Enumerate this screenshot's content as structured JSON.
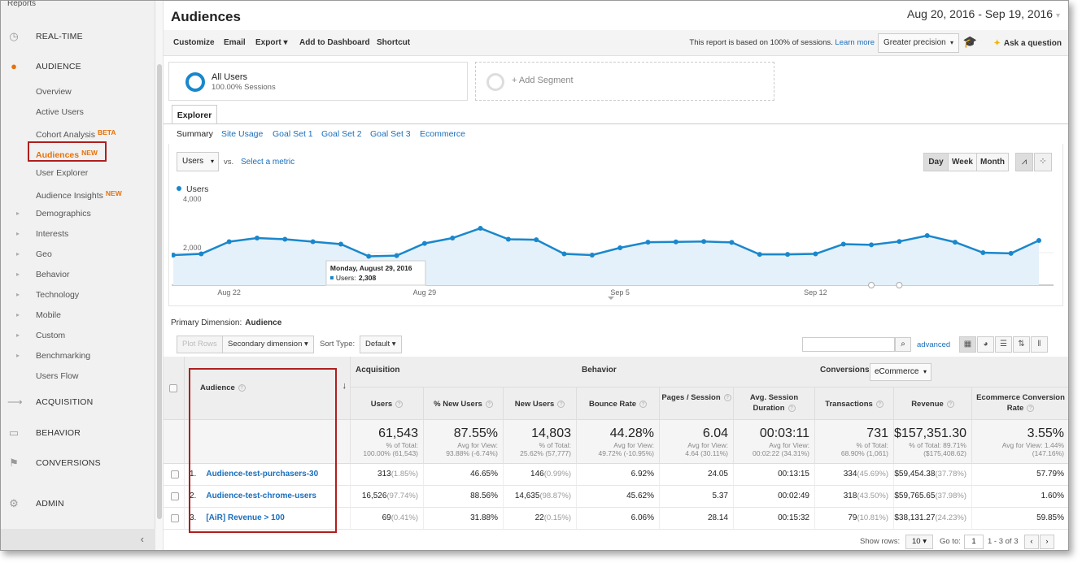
{
  "sidebar": {
    "reports_label": "Reports",
    "realtime": "REAL-TIME",
    "audience": "AUDIENCE",
    "items": [
      {
        "label": "Overview"
      },
      {
        "label": "Active Users"
      },
      {
        "label": "Cohort Analysis",
        "badge": "BETA"
      },
      {
        "label": "Audiences",
        "badge": "NEW"
      },
      {
        "label": "User Explorer"
      },
      {
        "label": "Audience Insights",
        "badge": "NEW"
      },
      {
        "label": "Demographics"
      },
      {
        "label": "Interests"
      },
      {
        "label": "Geo"
      },
      {
        "label": "Behavior"
      },
      {
        "label": "Technology"
      },
      {
        "label": "Mobile"
      },
      {
        "label": "Custom"
      },
      {
        "label": "Benchmarking"
      },
      {
        "label": "Users Flow"
      }
    ],
    "acquisition": "ACQUISITION",
    "behavior": "BEHAVIOR",
    "conversions": "CONVERSIONS",
    "admin": "ADMIN",
    "collapse_icon": "chevron-left-icon"
  },
  "header": {
    "title": "Audiences",
    "date_range": "Aug 20, 2016 - Sep 19, 2016"
  },
  "toolbar": {
    "customize": "Customize",
    "email": "Email",
    "export": "Export",
    "add_dashboard": "Add to Dashboard",
    "shortcut": "Shortcut",
    "note": "This report is based on 100% of sessions.",
    "learn_more": "Learn more",
    "precision": "Greater precision",
    "ask": "Ask a question"
  },
  "segments": {
    "all_users": "All Users",
    "all_users_sub": "100.00% Sessions",
    "add": "+ Add Segment"
  },
  "tabs": {
    "explorer": "Explorer",
    "subtabs": [
      "Summary",
      "Site Usage",
      "Goal Set 1",
      "Goal Set 2",
      "Goal Set 3",
      "Ecommerce"
    ]
  },
  "chart_controls": {
    "metric": "Users",
    "vs": "vs.",
    "select_metric": "Select a metric",
    "periods": [
      "Day",
      "Week",
      "Month"
    ]
  },
  "chart_data": {
    "type": "line",
    "series": [
      {
        "name": "Users",
        "values": [
          1900,
          1950,
          2450,
          2600,
          2550,
          2450,
          2350,
          1850,
          1880,
          2380,
          2600,
          3000,
          2550,
          2530,
          1950,
          1900,
          2200,
          2430,
          2440,
          2460,
          2420,
          1930,
          1930,
          1950,
          2350,
          2320,
          2460,
          2700,
          2430,
          2000,
          1970,
          2500
        ]
      }
    ],
    "x_tick_labels": [
      "Aug 22",
      "Aug 29",
      "Sep 5",
      "Sep 12"
    ],
    "y_tick_labels": [
      "4,000",
      "2,000"
    ],
    "ylim": [
      0,
      4000
    ],
    "tooltip": {
      "title": "Monday, August 29, 2016",
      "label": "Users:",
      "value": "2,308"
    },
    "color": "#1a87cc",
    "fill": "#e4f1fa"
  },
  "table_controls": {
    "primary_dimension_label": "Primary Dimension:",
    "primary_dimension": "Audience",
    "plot_rows": "Plot Rows",
    "secondary_dimension": "Secondary dimension",
    "sort_type_label": "Sort Type:",
    "sort_type": "Default",
    "advanced": "advanced"
  },
  "table": {
    "audience_header": "Audience",
    "groups": {
      "acquisition": "Acquisition",
      "behavior": "Behavior",
      "conversions": "Conversions",
      "conversion_type": "eCommerce"
    },
    "columns": [
      "Users",
      "% New Users",
      "New Users",
      "Bounce Rate",
      "Pages / Session",
      "Avg. Session Duration",
      "Transactions",
      "Revenue",
      "Ecommerce Conversion Rate"
    ],
    "totals": [
      {
        "big": "61,543",
        "l1": "% of Total:",
        "l2": "100.00% (61,543)"
      },
      {
        "big": "87.55%",
        "l1": "Avg for View:",
        "l2": "93.88% (-6.74%)"
      },
      {
        "big": "14,803",
        "l1": "% of Total:",
        "l2": "25.62% (57,777)"
      },
      {
        "big": "44.28%",
        "l1": "Avg for View:",
        "l2": "49.72% (-10.95%)"
      },
      {
        "big": "6.04",
        "l1": "Avg for View:",
        "l2": "4.64 (30.11%)"
      },
      {
        "big": "00:03:11",
        "l1": "Avg for View:",
        "l2": "00:02:22 (34.31%)"
      },
      {
        "big": "731",
        "l1": "% of Total:",
        "l2": "68.90% (1,061)"
      },
      {
        "big": "$157,351.30",
        "l1": "% of Total: 89.71%",
        "l2": "($175,408.62)"
      },
      {
        "big": "3.55%",
        "l1": "Avg for View: 1.44%",
        "l2": "(147.16%)"
      }
    ],
    "rows": [
      {
        "num": "1.",
        "name": "Audience-test-purchasers-30",
        "cells": [
          [
            "313",
            "(1.85%)"
          ],
          [
            "46.65%",
            ""
          ],
          [
            "146",
            "(0.99%)"
          ],
          [
            "6.92%",
            ""
          ],
          [
            "24.05",
            ""
          ],
          [
            "00:13:15",
            ""
          ],
          [
            "334",
            "(45.69%)"
          ],
          [
            "$59,454.38",
            "(37.78%)"
          ],
          [
            "57.79%",
            ""
          ]
        ]
      },
      {
        "num": "2.",
        "name": "Audience-test-chrome-users",
        "cells": [
          [
            "16,526",
            "(97.74%)"
          ],
          [
            "88.56%",
            ""
          ],
          [
            "14,635",
            "(98.87%)"
          ],
          [
            "45.62%",
            ""
          ],
          [
            "5.37",
            ""
          ],
          [
            "00:02:49",
            ""
          ],
          [
            "318",
            "(43.50%)"
          ],
          [
            "$59,765.65",
            "(37.98%)"
          ],
          [
            "1.60%",
            ""
          ]
        ]
      },
      {
        "num": "3.",
        "name": "[AiR] Revenue > 100",
        "cells": [
          [
            "69",
            "(0.41%)"
          ],
          [
            "31.88%",
            ""
          ],
          [
            "22",
            "(0.15%)"
          ],
          [
            "6.06%",
            ""
          ],
          [
            "28.14",
            ""
          ],
          [
            "00:15:32",
            ""
          ],
          [
            "79",
            "(10.81%)"
          ],
          [
            "$38,131.27",
            "(24.23%)"
          ],
          [
            "59.85%",
            ""
          ]
        ]
      }
    ],
    "footer": {
      "show_rows": "Show rows:",
      "rows_value": "10",
      "goto": "Go to:",
      "goto_value": "1",
      "range": "1 - 3 of 3"
    }
  }
}
